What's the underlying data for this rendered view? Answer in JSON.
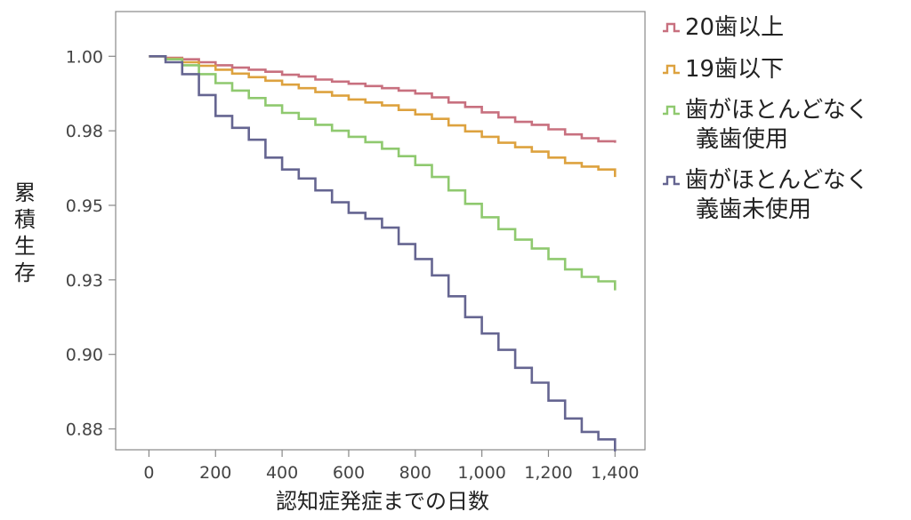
{
  "chart_data": {
    "type": "line",
    "step": true,
    "xlabel": "認知症発症までの日数",
    "ylabel": "累積生存",
    "xlim": [
      -100,
      1490
    ],
    "ylim": [
      0.868,
      1.015
    ],
    "x_ticks": [
      0,
      200,
      400,
      600,
      800,
      1000,
      1200,
      1400
    ],
    "x_tick_labels": [
      "0",
      "200",
      "400",
      "600",
      "800",
      "1,000",
      "1,200",
      "1,400"
    ],
    "y_ticks": [
      1.0,
      0.975,
      0.95,
      0.925,
      0.9,
      0.875
    ],
    "y_tick_labels": [
      "1.00",
      "0.98",
      "0.95",
      "0.93",
      "0.90",
      "0.88"
    ],
    "legend_position": "right",
    "series": [
      {
        "name": "20歯以上",
        "label_lines": [
          "20歯以上"
        ],
        "color": "#c8707f",
        "x": [
          0,
          50,
          100,
          150,
          200,
          250,
          300,
          350,
          400,
          450,
          500,
          550,
          600,
          650,
          700,
          750,
          800,
          850,
          900,
          950,
          1000,
          1050,
          1100,
          1150,
          1200,
          1250,
          1300,
          1350,
          1400
        ],
        "y": [
          1.0,
          0.9995,
          0.999,
          0.998,
          0.997,
          0.9962,
          0.9955,
          0.9948,
          0.9938,
          0.9932,
          0.9922,
          0.9915,
          0.9908,
          0.99,
          0.9893,
          0.9885,
          0.9875,
          0.9862,
          0.9845,
          0.983,
          0.9812,
          0.9795,
          0.978,
          0.977,
          0.9755,
          0.9738,
          0.9725,
          0.9715,
          0.971
        ]
      },
      {
        "name": "19歯以下",
        "label_lines": [
          "19歯以下"
        ],
        "color": "#dda23f",
        "x": [
          0,
          50,
          100,
          150,
          200,
          250,
          300,
          350,
          400,
          450,
          500,
          550,
          600,
          650,
          700,
          750,
          800,
          850,
          900,
          950,
          1000,
          1050,
          1100,
          1150,
          1200,
          1250,
          1300,
          1350,
          1400
        ],
        "y": [
          1.0,
          0.9992,
          0.998,
          0.9968,
          0.9955,
          0.9942,
          0.993,
          0.9918,
          0.9905,
          0.9893,
          0.988,
          0.9868,
          0.9855,
          0.9845,
          0.9835,
          0.982,
          0.9805,
          0.979,
          0.9768,
          0.9748,
          0.973,
          0.971,
          0.9695,
          0.968,
          0.966,
          0.9642,
          0.963,
          0.962,
          0.9595
        ]
      },
      {
        "name": "歯がほとんどなく義歯使用",
        "label_lines": [
          "歯がほとんどなく",
          "義歯使用"
        ],
        "color": "#8fc96f",
        "x": [
          0,
          50,
          100,
          150,
          200,
          250,
          300,
          350,
          400,
          450,
          500,
          550,
          600,
          650,
          700,
          750,
          800,
          850,
          900,
          950,
          1000,
          1050,
          1100,
          1150,
          1200,
          1250,
          1300,
          1350,
          1400
        ],
        "y": [
          1.0,
          0.999,
          0.997,
          0.994,
          0.991,
          0.9885,
          0.986,
          0.9835,
          0.981,
          0.979,
          0.977,
          0.975,
          0.973,
          0.9712,
          0.969,
          0.9665,
          0.9635,
          0.9595,
          0.955,
          0.9505,
          0.946,
          0.942,
          0.9385,
          0.9355,
          0.932,
          0.9285,
          0.926,
          0.9245,
          0.9215
        ]
      },
      {
        "name": "歯がほとんどなく義歯未使用",
        "label_lines": [
          "歯がほとんどなく",
          "義歯未使用"
        ],
        "color": "#656591",
        "x": [
          0,
          50,
          100,
          150,
          200,
          250,
          300,
          350,
          400,
          450,
          500,
          550,
          600,
          650,
          700,
          750,
          800,
          850,
          900,
          950,
          1000,
          1050,
          1100,
          1150,
          1200,
          1250,
          1300,
          1350,
          1400
        ],
        "y": [
          1.0,
          0.998,
          0.994,
          0.987,
          0.98,
          0.976,
          0.972,
          0.966,
          0.962,
          0.959,
          0.955,
          0.951,
          0.9475,
          0.9455,
          0.9425,
          0.937,
          0.932,
          0.9265,
          0.9195,
          0.9125,
          0.907,
          0.9015,
          0.8955,
          0.8905,
          0.8845,
          0.8785,
          0.874,
          0.8715,
          0.8675
        ]
      }
    ]
  }
}
